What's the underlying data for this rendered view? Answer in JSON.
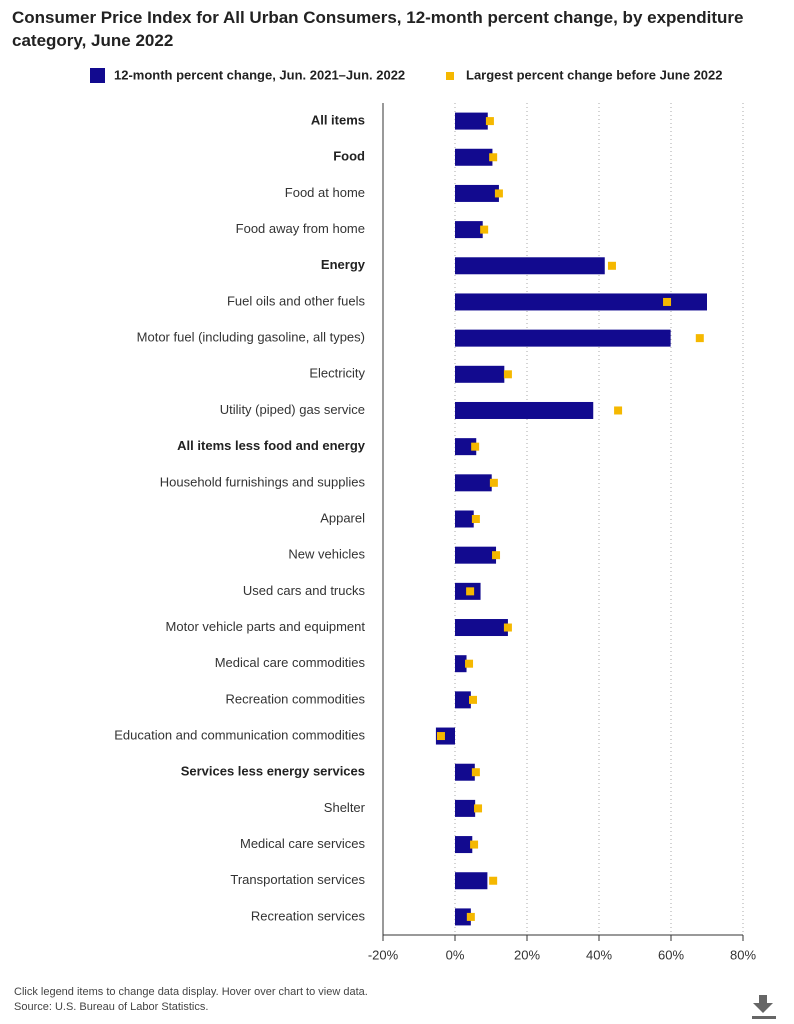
{
  "chart_data": {
    "type": "bar",
    "title": "Consumer Price Index for All Urban Consumers, 12-month percent change, by expenditure category, June 2022",
    "categories": [
      "All items",
      "Food",
      "Food at home",
      "Food away from home",
      "Energy",
      "Fuel oils and other fuels",
      "Motor fuel (including gasoline, all types)",
      "Electricity",
      "Utility (piped) gas service",
      "All items less food and energy",
      "Household furnishings and supplies",
      "Apparel",
      "New vehicles",
      "Used cars and trucks",
      "Motor vehicle parts and equipment",
      "Medical care commodities",
      "Recreation commodities",
      "Education and communication commodities",
      "Services less energy services",
      "Shelter",
      "Medical care services",
      "Transportation services",
      "Recreation services"
    ],
    "bold": [
      true,
      true,
      false,
      false,
      true,
      false,
      false,
      false,
      false,
      true,
      false,
      false,
      false,
      false,
      false,
      false,
      false,
      false,
      true,
      false,
      false,
      false,
      false
    ],
    "series": [
      {
        "name": "12-month percent change, Jun. 2021–Jun. 2022",
        "color": "#120a8f",
        "values": [
          9.1,
          10.4,
          12.2,
          7.7,
          41.6,
          70,
          59.9,
          13.7,
          38.4,
          5.9,
          10.2,
          5.2,
          11.4,
          7.1,
          14.7,
          3.2,
          4.4,
          -5.3,
          5.5,
          5.6,
          4.8,
          9.0,
          4.4
        ]
      },
      {
        "name": "Largest percent change before June 2022",
        "color": "#f5b800",
        "values": [
          9.7,
          10.6,
          12.2,
          8.1,
          43.6,
          58.9,
          68,
          14.7,
          45.3,
          5.6,
          10.8,
          5.8,
          11.4,
          4.2,
          14.7,
          3.9,
          5.0,
          -3.9,
          5.8,
          6.4,
          5.3,
          10.6,
          4.4
        ]
      }
    ],
    "xlim": [
      -20,
      80
    ],
    "xticks": [
      {
        "value": -20,
        "label": "-20%"
      },
      {
        "value": 0,
        "label": "0%"
      },
      {
        "value": 20,
        "label": "20%"
      },
      {
        "value": 40,
        "label": "40%"
      },
      {
        "value": 60,
        "label": "60%"
      },
      {
        "value": 80,
        "label": "80%"
      }
    ],
    "notes": [
      "Click legend items to change data display. Hover over chart to view data.",
      "Source: U.S. Bureau of Labor Statistics."
    ]
  }
}
